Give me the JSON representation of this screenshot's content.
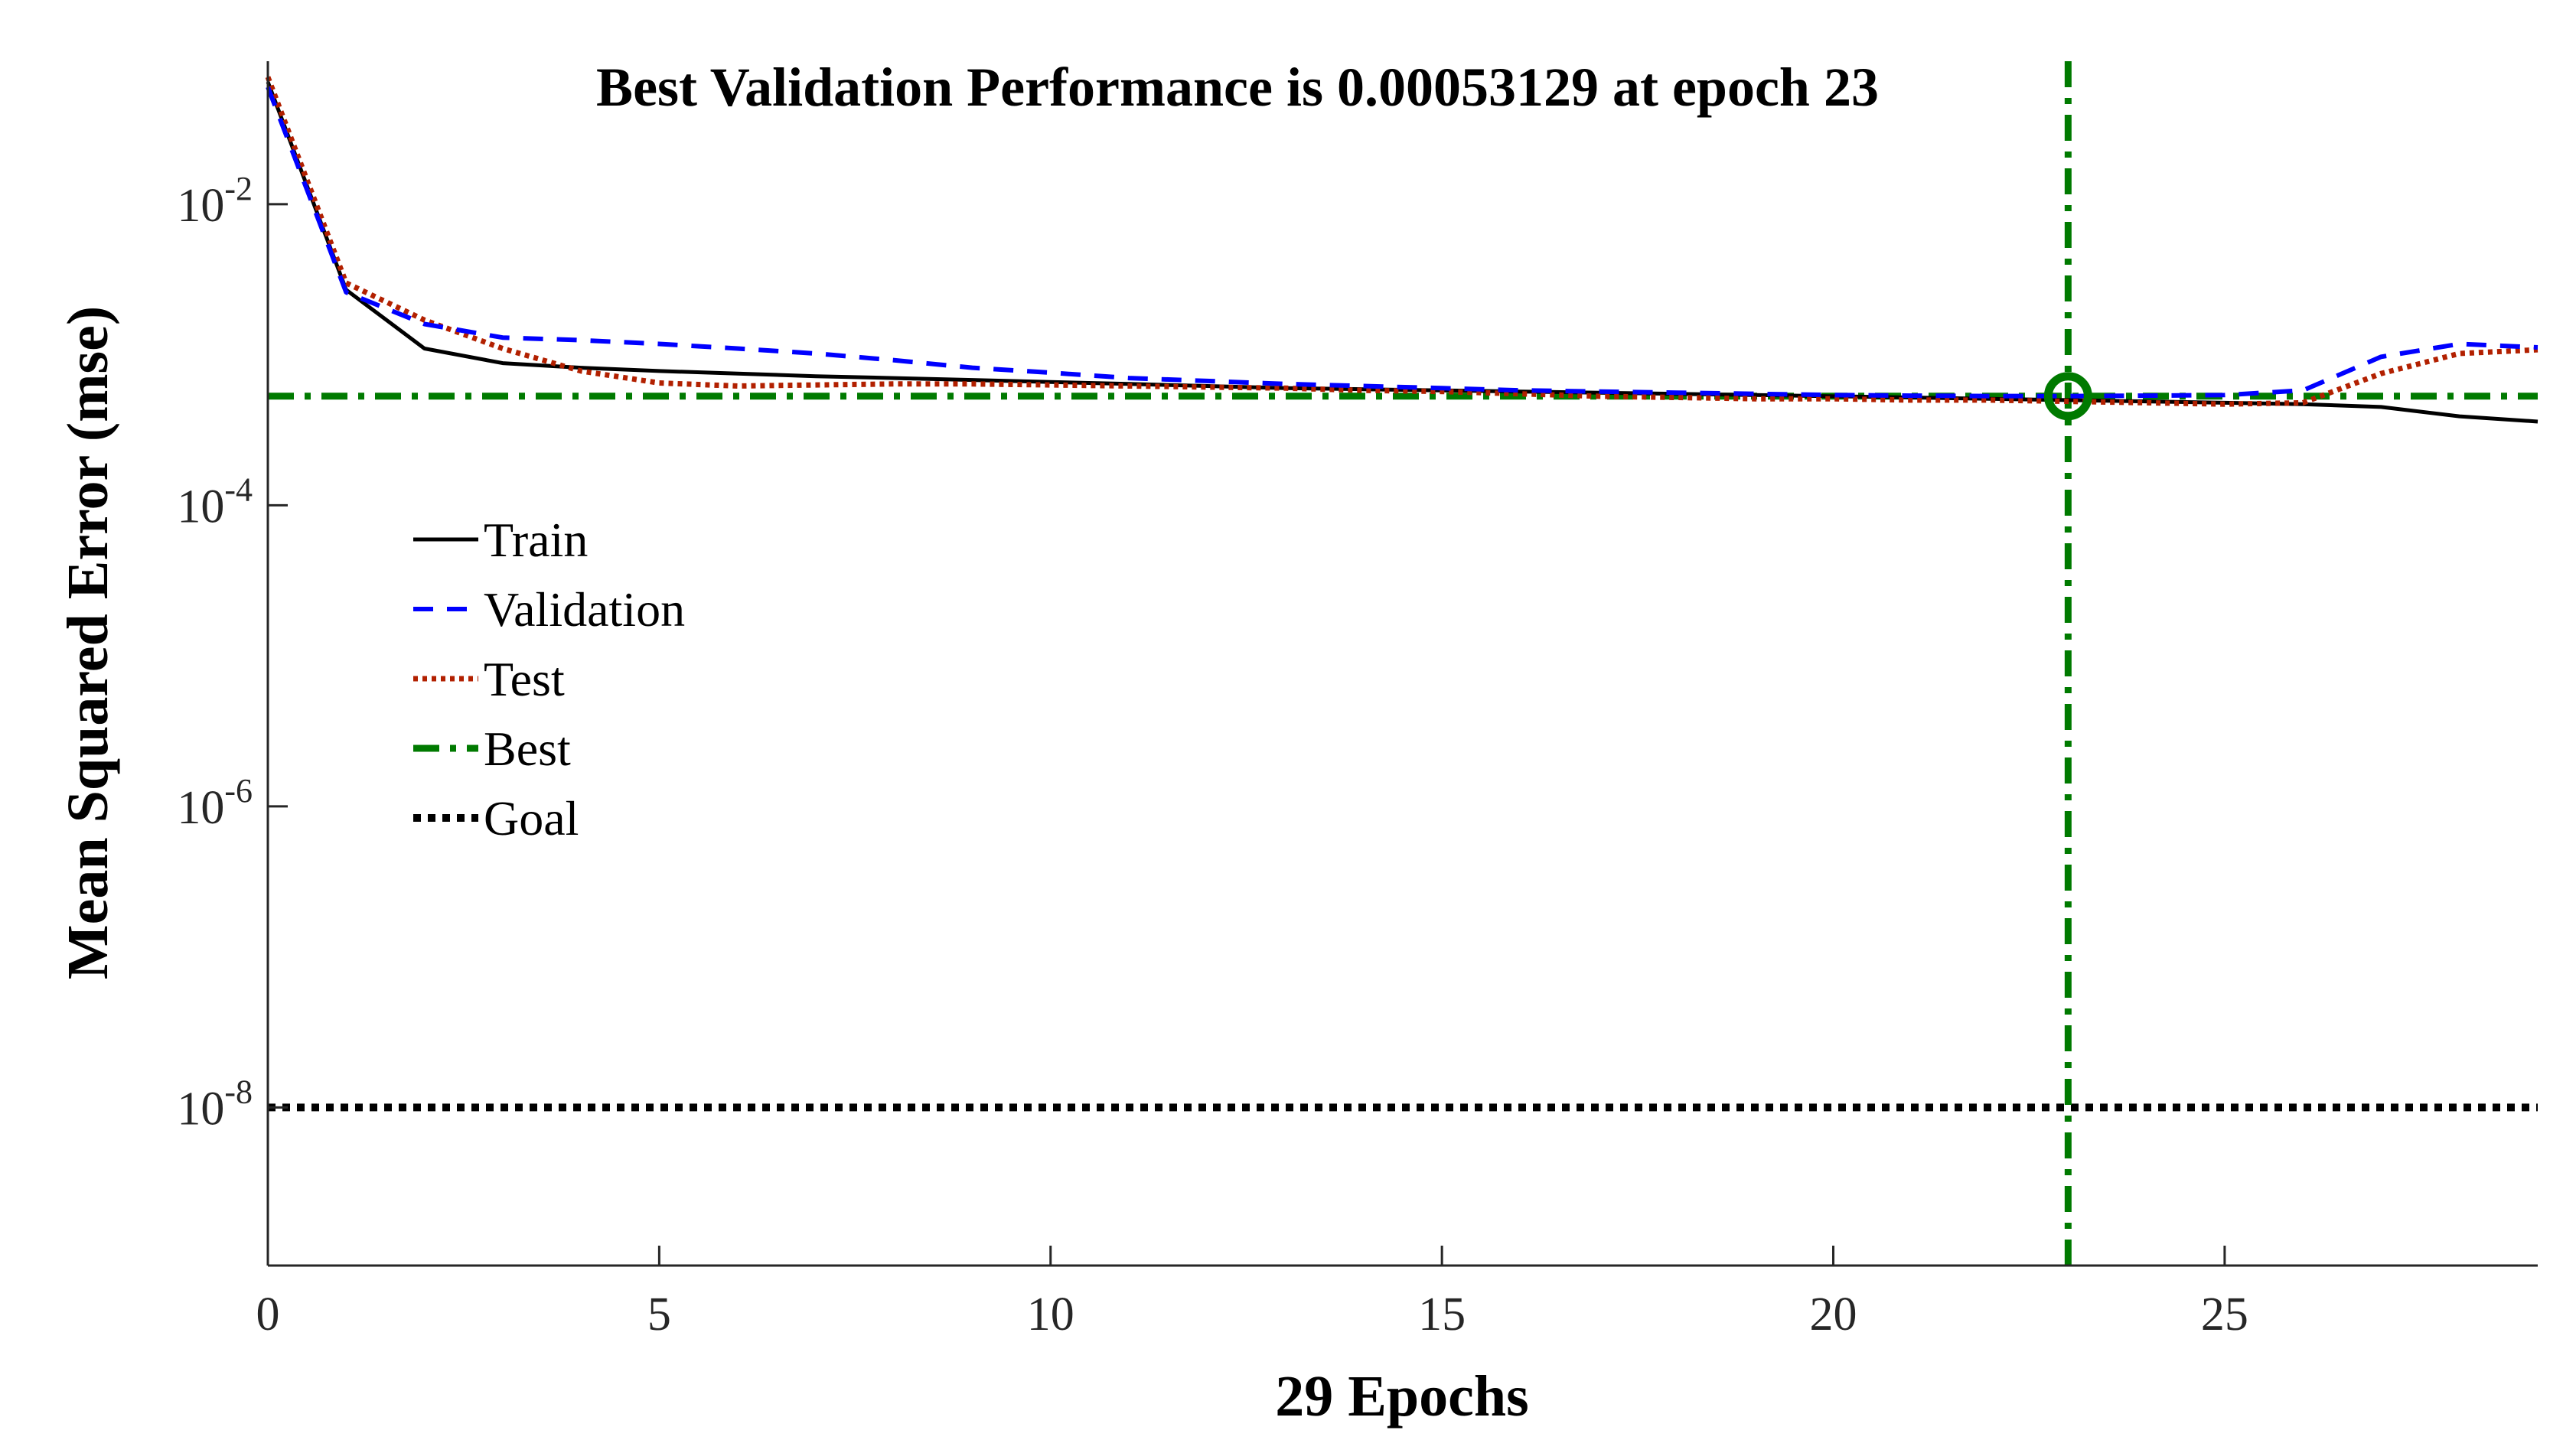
{
  "chart_data": {
    "type": "line",
    "title": "Best Validation Performance is 0.00053129 at epoch 23",
    "xlabel": "29 Epochs",
    "ylabel": "Mean Squared Error  (mse)",
    "xlim": [
      0,
      29
    ],
    "ylim_log10": [
      -9.05,
      -1.05
    ],
    "yscale": "log",
    "x_ticks": [
      {
        "value": 0,
        "label": "0"
      },
      {
        "value": 5,
        "label": "5"
      },
      {
        "value": 10,
        "label": "10"
      },
      {
        "value": 15,
        "label": "15"
      },
      {
        "value": 20,
        "label": "20"
      },
      {
        "value": 25,
        "label": "25"
      }
    ],
    "y_ticks": [
      {
        "exp": -2,
        "base": "10",
        "sup": "-2"
      },
      {
        "exp": -4,
        "base": "10",
        "sup": "-4"
      },
      {
        "exp": -6,
        "base": "10",
        "sup": "-6"
      },
      {
        "exp": -8,
        "base": "10",
        "sup": "-8"
      }
    ],
    "series": [
      {
        "name": "Train",
        "color": "#000000",
        "dash": "none",
        "x": [
          0,
          1,
          2,
          3,
          4,
          5,
          6,
          7,
          8,
          9,
          10,
          11,
          12,
          13,
          14,
          15,
          16,
          17,
          18,
          19,
          20,
          21,
          22,
          23,
          24,
          25,
          26,
          27,
          28,
          29
        ],
        "values": [
          0.065,
          0.0027,
          0.0011,
          0.00088,
          0.00082,
          0.00078,
          0.00075,
          0.00072,
          0.0007,
          0.00068,
          0.00066,
          0.00064,
          0.00062,
          0.0006,
          0.00059,
          0.00058,
          0.00057,
          0.00056,
          0.00055,
          0.00054,
          0.00053,
          0.00052,
          0.00051,
          0.0005,
          0.00049,
          0.00048,
          0.00047,
          0.00045,
          0.00039,
          0.00036
        ]
      },
      {
        "name": "Validation",
        "color": "#0000ff",
        "dash": "dashed",
        "x": [
          0,
          1,
          2,
          3,
          4,
          5,
          6,
          7,
          8,
          9,
          10,
          11,
          12,
          13,
          14,
          15,
          16,
          17,
          18,
          19,
          20,
          21,
          22,
          23,
          24,
          25,
          26,
          27,
          28,
          29
        ],
        "values": [
          0.06,
          0.0026,
          0.0016,
          0.0013,
          0.00125,
          0.00118,
          0.0011,
          0.00102,
          0.00092,
          0.00082,
          0.00076,
          0.0007,
          0.00067,
          0.00064,
          0.00062,
          0.0006,
          0.00058,
          0.00057,
          0.00056,
          0.00055,
          0.00054,
          0.000535,
          0.000532,
          0.00053129,
          0.000535,
          0.00054,
          0.00058,
          0.00097,
          0.00118,
          0.00112
        ]
      },
      {
        "name": "Test",
        "color": "#b22000",
        "dash": "dotted",
        "x": [
          0,
          1,
          2,
          3,
          4,
          5,
          6,
          7,
          8,
          9,
          10,
          11,
          12,
          13,
          14,
          15,
          16,
          17,
          18,
          19,
          20,
          21,
          22,
          23,
          24,
          25,
          26,
          27,
          28,
          29
        ],
        "values": [
          0.07,
          0.003,
          0.0017,
          0.0011,
          0.00078,
          0.00065,
          0.00062,
          0.00063,
          0.00064,
          0.00064,
          0.00063,
          0.00062,
          0.00061,
          0.0006,
          0.00058,
          0.00057,
          0.00055,
          0.00053,
          0.00052,
          0.00051,
          0.00051,
          0.0005,
          0.0005,
          0.00049,
          0.00048,
          0.00047,
          0.00048,
          0.00075,
          0.00102,
          0.00108
        ]
      },
      {
        "name": "Best",
        "color": "#007a00",
        "dash": "dashdot",
        "kind": "reference-lines",
        "best_epoch": 23,
        "best_value": 0.00053129
      },
      {
        "name": "Goal",
        "color": "#000000",
        "dash": "dotted-heavy",
        "kind": "horizontal-line",
        "value": 1e-08
      }
    ],
    "legend_position": "left-middle",
    "grid": false
  }
}
